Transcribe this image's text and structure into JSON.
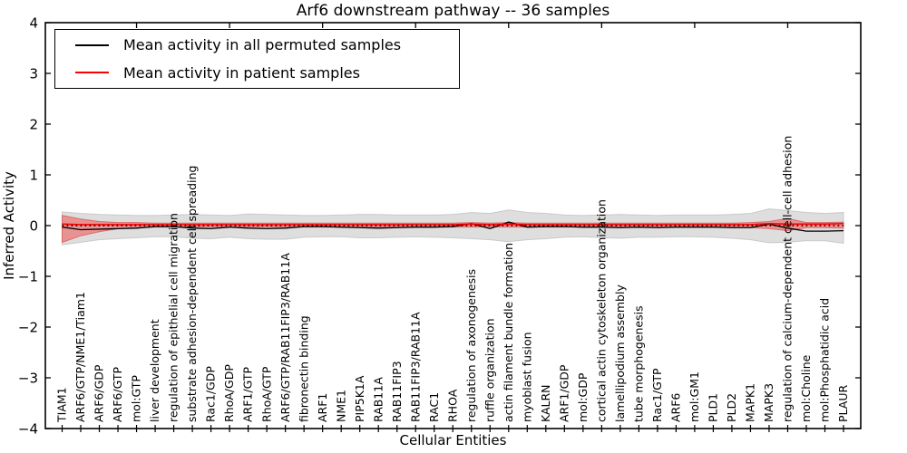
{
  "legend": {
    "items": [
      {
        "label": "Mean activity in all permuted samples",
        "color": "#000000"
      },
      {
        "label": "Mean activity in patient samples",
        "color": "#ff0000"
      }
    ],
    "position": "upper left"
  },
  "chart_data": {
    "type": "line",
    "title": "Arf6 downstream pathway -- 36 samples",
    "xlabel": "Cellular Entities",
    "ylabel": "Inferred Activity",
    "ylim": [
      -4,
      4
    ],
    "yticks": [
      4,
      3,
      2,
      1,
      0,
      -1,
      -2,
      -3,
      -4
    ],
    "grid": false,
    "zero_line": 0,
    "top_tick_category_indices": [
      4,
      9,
      14,
      19,
      24,
      29,
      34,
      39
    ],
    "categories": [
      "TIAM1",
      "ARF6/GTP/NME1/Tiam1",
      "ARF6/GDP",
      "ARF6/GTP",
      "mol:GTP",
      "liver development",
      "regulation of epithelial cell migration",
      "substrate adhesion-dependent cell spreading",
      "Rac1/GDP",
      "RhoA/GDP",
      "ARF1/GTP",
      "RhoA/GTP",
      "ARF6/GTP/RAB11FIP3/RAB11A",
      "fibronectin binding",
      "ARF1",
      "NME1",
      "PIP5K1A",
      "RAB11A",
      "RAB11FIP3",
      "RAB11FIP3/RAB11A",
      "RAC1",
      "RHOA",
      "regulation of axonogenesis",
      "ruffle organization",
      "actin filament bundle formation",
      "myoblast fusion",
      "KALRN",
      "ARF1/GDP",
      "mol:GDP",
      "cortical actin cytoskeleton organization",
      "lamellipodium assembly",
      "tube morphogenesis",
      "Rac1/GTP",
      "ARF6",
      "mol:GM1",
      "PLD1",
      "PLD2",
      "MAPK1",
      "MAPK3",
      "regulation of calcium-dependent cell-cell adhesion",
      "mol:Choline",
      "mol:Phosphatidic acid",
      "PLAUR"
    ],
    "series": [
      {
        "name": "Mean activity in all permuted samples",
        "color": "#000000",
        "values": [
          -0.03,
          -0.08,
          -0.07,
          -0.06,
          -0.05,
          -0.02,
          -0.02,
          -0.05,
          -0.06,
          -0.03,
          -0.05,
          -0.06,
          -0.05,
          -0.02,
          -0.02,
          -0.03,
          -0.04,
          -0.05,
          -0.04,
          -0.03,
          -0.03,
          -0.02,
          0.04,
          -0.06,
          0.07,
          -0.03,
          -0.02,
          -0.02,
          -0.03,
          -0.03,
          -0.04,
          -0.03,
          -0.04,
          -0.03,
          -0.03,
          -0.03,
          -0.04,
          -0.04,
          0.03,
          -0.05,
          -0.11,
          -0.11,
          -0.1
        ]
      },
      {
        "name": "Mean activity in patient samples",
        "color": "#ff0000",
        "values": [
          0.03,
          0.02,
          0.02,
          0.02,
          0.02,
          0.02,
          0.02,
          0.02,
          0.02,
          0.02,
          0.02,
          0.02,
          0.02,
          0.02,
          0.02,
          0.02,
          0.02,
          0.02,
          0.02,
          0.02,
          0.02,
          0.02,
          0.03,
          0.02,
          0.03,
          0.02,
          0.02,
          0.02,
          0.02,
          0.02,
          0.02,
          0.02,
          0.02,
          0.02,
          0.02,
          0.02,
          0.02,
          0.02,
          0.04,
          0.03,
          0.03,
          0.03,
          0.04
        ]
      }
    ],
    "bands": [
      {
        "name": "permuted-samples-std",
        "fill": "#000000",
        "fill_opacity": 0.13,
        "stroke": "#999999",
        "stroke_opacity": 0.4,
        "upper": [
          0.27,
          0.24,
          0.22,
          0.21,
          0.2,
          0.2,
          0.21,
          0.22,
          0.21,
          0.2,
          0.23,
          0.22,
          0.21,
          0.2,
          0.2,
          0.21,
          0.22,
          0.22,
          0.21,
          0.21,
          0.21,
          0.22,
          0.26,
          0.24,
          0.31,
          0.26,
          0.24,
          0.21,
          0.2,
          0.21,
          0.22,
          0.21,
          0.2,
          0.21,
          0.21,
          0.21,
          0.22,
          0.24,
          0.33,
          0.3,
          0.26,
          0.24,
          0.26
        ],
        "lower": [
          -0.38,
          -0.33,
          -0.28,
          -0.26,
          -0.24,
          -0.22,
          -0.22,
          -0.25,
          -0.26,
          -0.23,
          -0.26,
          -0.27,
          -0.27,
          -0.23,
          -0.22,
          -0.22,
          -0.24,
          -0.24,
          -0.23,
          -0.22,
          -0.23,
          -0.24,
          -0.26,
          -0.28,
          -0.32,
          -0.28,
          -0.26,
          -0.23,
          -0.22,
          -0.24,
          -0.25,
          -0.23,
          -0.23,
          -0.22,
          -0.22,
          -0.23,
          -0.25,
          -0.28,
          -0.34,
          -0.33,
          -0.3,
          -0.3,
          -0.35
        ]
      },
      {
        "name": "patient-samples-std",
        "fill": "#ff0000",
        "fill_opacity": 0.34,
        "stroke": "#dd4444",
        "stroke_opacity": 0.65,
        "upper": [
          0.2,
          0.13,
          0.08,
          0.06,
          0.06,
          0.05,
          0.05,
          0.05,
          0.05,
          0.05,
          0.05,
          0.05,
          0.05,
          0.05,
          0.05,
          0.05,
          0.05,
          0.05,
          0.05,
          0.05,
          0.05,
          0.05,
          0.06,
          0.05,
          0.06,
          0.05,
          0.05,
          0.05,
          0.05,
          0.05,
          0.05,
          0.05,
          0.05,
          0.05,
          0.05,
          0.05,
          0.05,
          0.06,
          0.08,
          0.14,
          0.06,
          0.06,
          0.07
        ],
        "lower": [
          -0.33,
          -0.2,
          -0.12,
          -0.06,
          -0.04,
          -0.03,
          -0.03,
          -0.03,
          -0.03,
          -0.03,
          -0.03,
          -0.03,
          -0.03,
          -0.03,
          -0.03,
          -0.03,
          -0.03,
          -0.03,
          -0.03,
          -0.03,
          -0.03,
          -0.03,
          -0.03,
          -0.03,
          -0.03,
          -0.03,
          -0.03,
          -0.03,
          -0.03,
          -0.03,
          -0.03,
          -0.03,
          -0.03,
          -0.03,
          -0.03,
          -0.03,
          -0.03,
          -0.04,
          -0.06,
          -0.1,
          -0.04,
          -0.04,
          -0.05
        ]
      }
    ]
  }
}
